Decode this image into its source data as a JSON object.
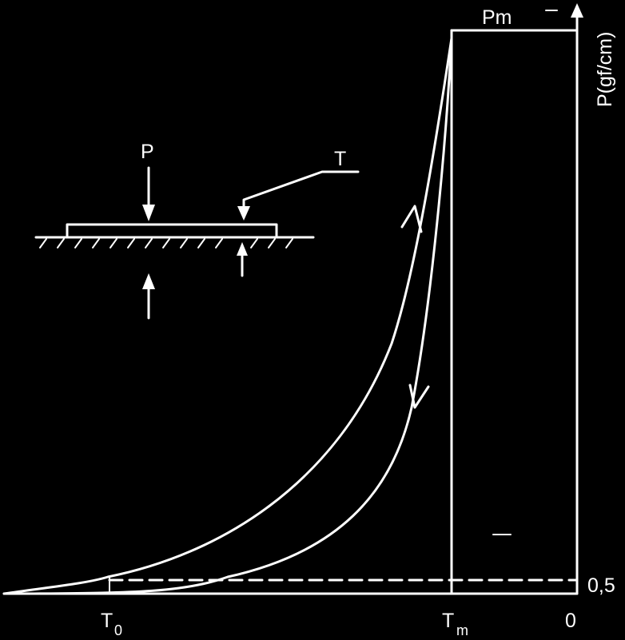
{
  "axis": {
    "y_label": "P(gf/cm)",
    "y_tick_05": "0,5",
    "x_zero": "0",
    "x_t0_main": "T",
    "x_t0_sub": "0",
    "x_tm_main": "T",
    "x_tm_sub": "m"
  },
  "curve": {
    "peak_label": "Pm"
  },
  "inset": {
    "force_label": "P",
    "tension_label": "T"
  },
  "colors": {
    "background": "#000000",
    "foreground": "#ffffff"
  }
}
